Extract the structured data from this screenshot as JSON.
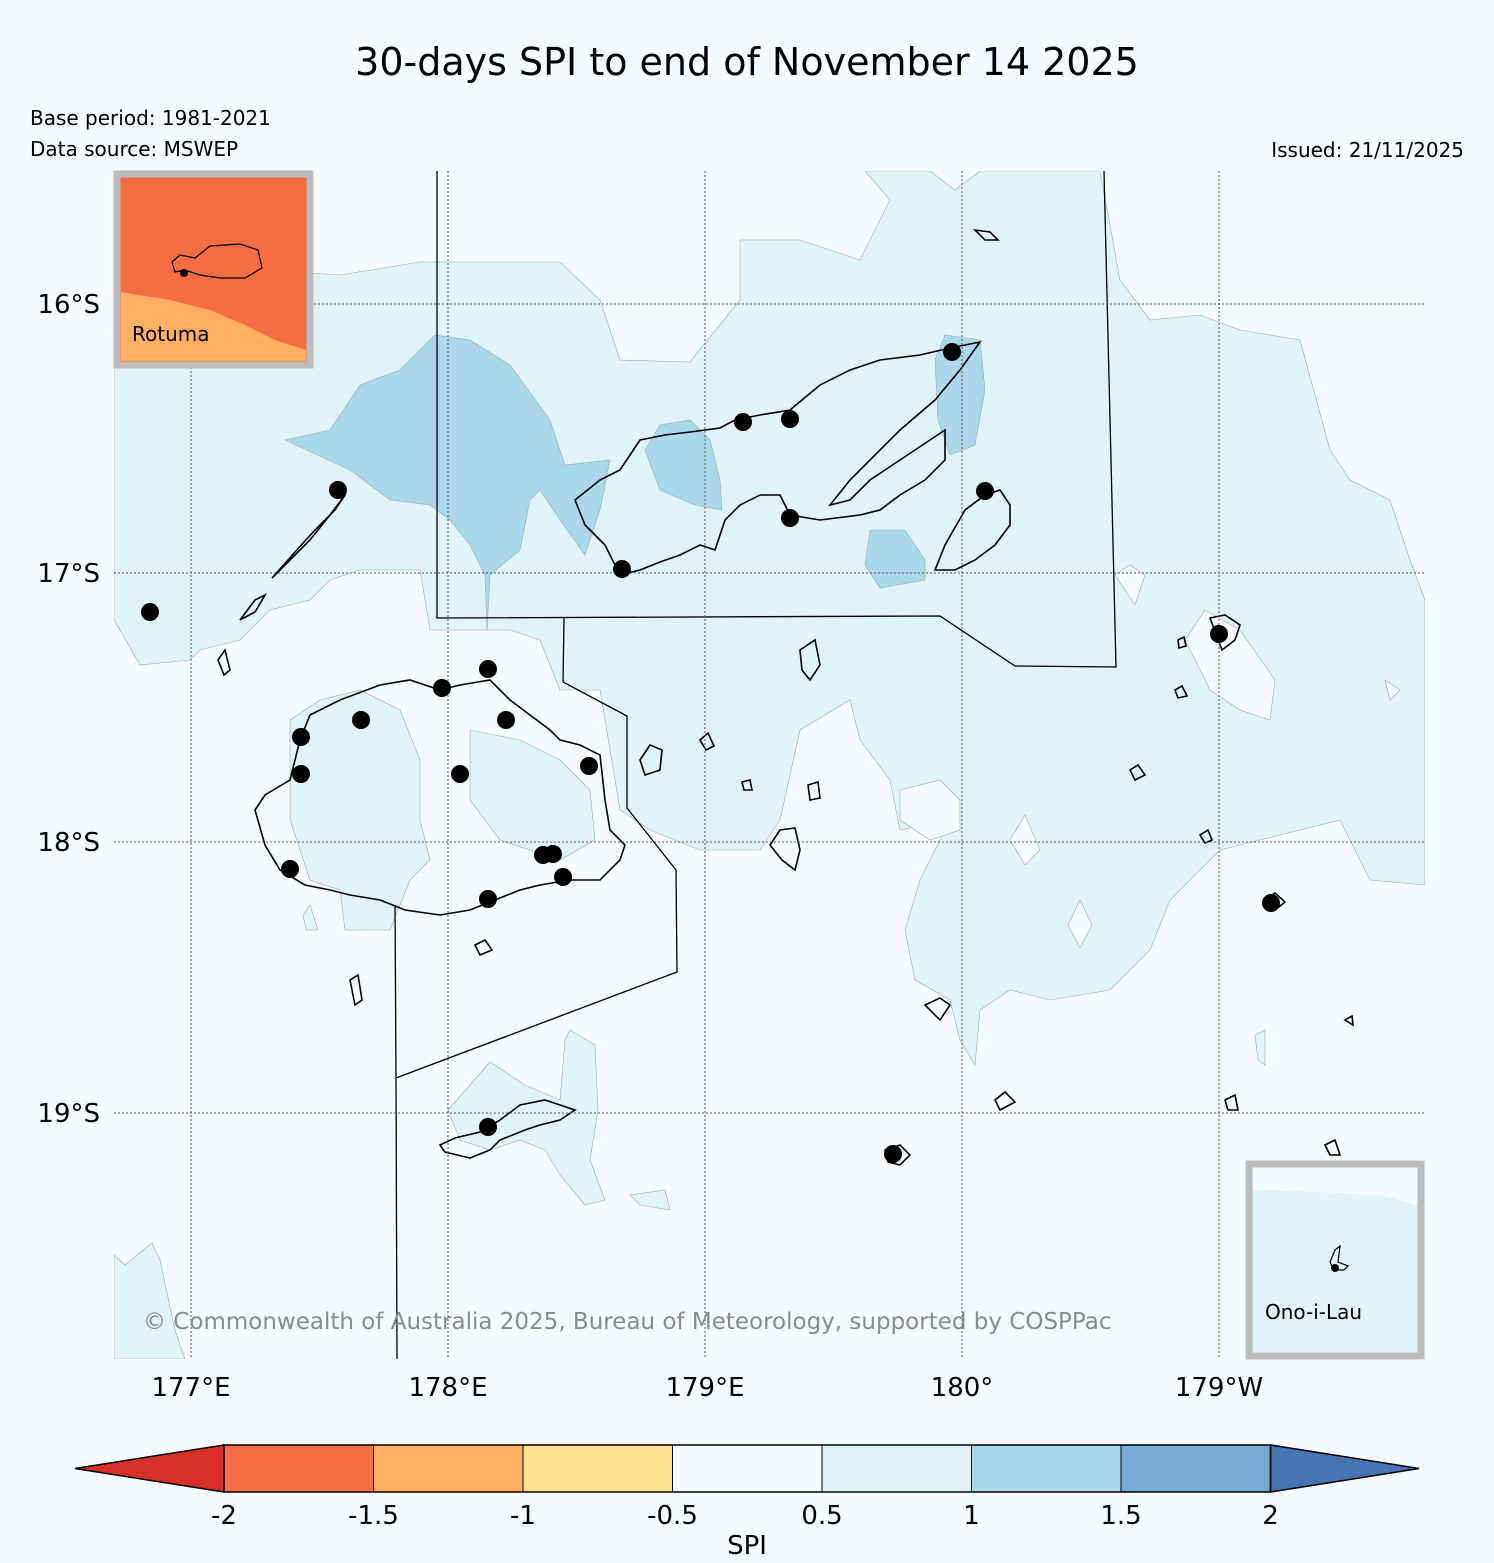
{
  "title": "30-days SPI to end of November 14 2025",
  "base_period": "Base period: 1981-2021",
  "data_source": "Data source: MSWEP",
  "issued": "Issued: 21/11/2025",
  "copyright": "© Commonwealth of Australia 2025, Bureau of Meteorology, supported by COSPPac",
  "latitude_labels": [
    "16°S",
    "17°S",
    "18°S",
    "19°S"
  ],
  "longitude_labels": [
    "177°E",
    "178°E",
    "179°E",
    "180°",
    "179°W"
  ],
  "insets": {
    "rotuma": "Rotuma",
    "ono_i_lau": "Ono-i-Lau"
  },
  "colorbar": {
    "label": "SPI",
    "ticks": [
      "-2",
      "-1.5",
      "-1",
      "-0.5",
      "0.5",
      "1",
      "1.5",
      "2"
    ],
    "colors": [
      "#d73027",
      "#f46d43",
      "#fdae61",
      "#fee090",
      "#f5fbfe",
      "#e0f3f8",
      "#abd9e9",
      "#74add1",
      "#4575b4"
    ]
  },
  "legend_colors": {
    "spi_0_5_to_1": "#e0f3f8",
    "spi_1_to_1_5": "#abd9e9",
    "spi_neg_1_5_to_neg_1": "#fdae61",
    "spi_neg_2_to_neg_1_5": "#f46d43"
  }
}
